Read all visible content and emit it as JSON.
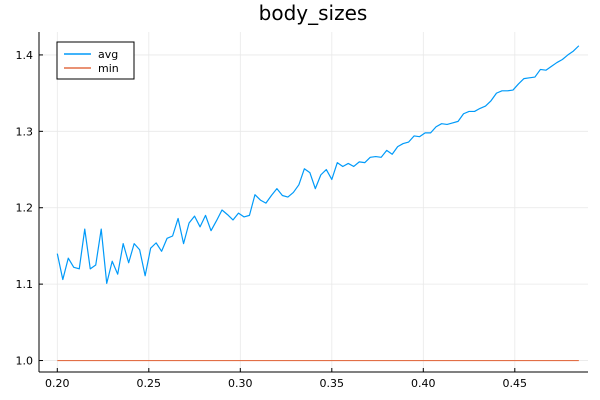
{
  "chart_data": {
    "type": "line",
    "title": "body_sizes",
    "xlabel": "",
    "ylabel": "",
    "xlim": [
      0.19,
      0.49
    ],
    "ylim": [
      0.985,
      1.43
    ],
    "xticks": [
      "0.20",
      "0.25",
      "0.30",
      "0.35",
      "0.40",
      "0.45"
    ],
    "yticks": [
      "1.0",
      "1.1",
      "1.2",
      "1.3",
      "1.4"
    ],
    "grid": true,
    "legend_position": "top-left",
    "series": [
      {
        "name": "avg",
        "color": "#009af9",
        "x": [
          0.2,
          0.203,
          0.206,
          0.209,
          0.212,
          0.215,
          0.218,
          0.221,
          0.224,
          0.227,
          0.23,
          0.233,
          0.236,
          0.239,
          0.242,
          0.245,
          0.248,
          0.251,
          0.254,
          0.257,
          0.26,
          0.263,
          0.266,
          0.269,
          0.272,
          0.275,
          0.278,
          0.281,
          0.284,
          0.287,
          0.29,
          0.293,
          0.296,
          0.299,
          0.302,
          0.305,
          0.308,
          0.311,
          0.314,
          0.317,
          0.32,
          0.323,
          0.326,
          0.329,
          0.332,
          0.335,
          0.338,
          0.341,
          0.344,
          0.347,
          0.35,
          0.353,
          0.356,
          0.359,
          0.362,
          0.365,
          0.368,
          0.371,
          0.374,
          0.377,
          0.38,
          0.383,
          0.386,
          0.389,
          0.392,
          0.395,
          0.398,
          0.401,
          0.404,
          0.407,
          0.41,
          0.413,
          0.416,
          0.419,
          0.422,
          0.425,
          0.428,
          0.431,
          0.434,
          0.437,
          0.44,
          0.443,
          0.446,
          0.449,
          0.452,
          0.455,
          0.458,
          0.461,
          0.464,
          0.467,
          0.47,
          0.473,
          0.476,
          0.479,
          0.482,
          0.485
        ],
        "values": [
          1.14,
          1.106,
          1.134,
          1.122,
          1.12,
          1.172,
          1.12,
          1.125,
          1.172,
          1.101,
          1.13,
          1.113,
          1.153,
          1.128,
          1.153,
          1.145,
          1.111,
          1.147,
          1.154,
          1.143,
          1.16,
          1.163,
          1.186,
          1.153,
          1.18,
          1.189,
          1.175,
          1.19,
          1.17,
          1.183,
          1.197,
          1.191,
          1.184,
          1.193,
          1.188,
          1.19,
          1.217,
          1.21,
          1.206,
          1.216,
          1.225,
          1.216,
          1.214,
          1.22,
          1.23,
          1.251,
          1.246,
          1.225,
          1.243,
          1.25,
          1.237,
          1.259,
          1.254,
          1.258,
          1.254,
          1.26,
          1.259,
          1.266,
          1.267,
          1.266,
          1.275,
          1.27,
          1.28,
          1.284,
          1.286,
          1.294,
          1.293,
          1.298,
          1.298,
          1.306,
          1.31,
          1.309,
          1.311,
          1.313,
          1.323,
          1.326,
          1.326,
          1.33,
          1.333,
          1.34,
          1.35,
          1.353,
          1.353,
          1.354,
          1.362,
          1.369,
          1.37,
          1.371,
          1.381,
          1.38,
          1.385,
          1.39,
          1.394,
          1.4,
          1.405,
          1.412
        ]
      },
      {
        "name": "min",
        "color": "#e26f46",
        "x": [
          0.2,
          0.485
        ],
        "values": [
          1.0,
          1.0
        ]
      }
    ]
  }
}
